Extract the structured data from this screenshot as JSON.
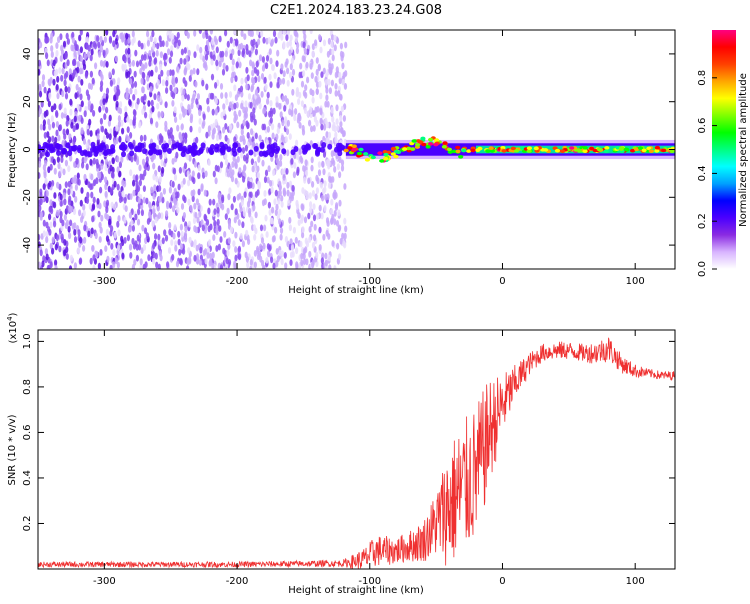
{
  "title": "C2E1.2024.183.23.24.G08",
  "chart_data": [
    {
      "type": "heatmap",
      "xlabel": "Height of straight line (km)",
      "ylabel": "Frequency (Hz)",
      "xlim": [
        -350,
        130
      ],
      "ylim": [
        -50,
        50
      ],
      "x_ticks": [
        -300,
        -200,
        -100,
        0,
        100
      ],
      "y_ticks": [
        -40,
        -20,
        0,
        20,
        40
      ],
      "colorbar": {
        "label": "Normalized spectral amplitude",
        "range": [
          0.0,
          1.0
        ],
        "ticks": [
          "0.0",
          "0.2",
          "0.4",
          "0.6",
          "0.8"
        ],
        "colors": [
          "#ffffff",
          "#d8b4ff",
          "#8a2be2",
          "#4b00ff",
          "#0000ff",
          "#00a0ff",
          "#00ffff",
          "#00ff80",
          "#00ff00",
          "#80ff00",
          "#ffff00",
          "#ffa500",
          "#ff4000",
          "#ff0000",
          "#ff0080"
        ]
      },
      "regions": {
        "noise": {
          "x_range": [
            -350,
            -118
          ],
          "y_range": [
            -50,
            50
          ],
          "amplitude": 0.2
        },
        "signal_band": {
          "x_range": [
            -118,
            130
          ],
          "center_hz": 0,
          "half_width_hz": 4,
          "amplitude_min": 0.5,
          "amplitude_max": 0.95
        }
      }
    },
    {
      "type": "line",
      "xlabel": "Height of straight line (km)",
      "ylabel": "SNR (10 * v/v)",
      "scale_label": "(x10",
      "scale_exp": "4",
      "scale_close": ")",
      "xlim": [
        -350,
        130
      ],
      "ylim": [
        0,
        1.05
      ],
      "x_ticks": [
        -300,
        -200,
        -100,
        0,
        100
      ],
      "y_ticks": [
        "0.2",
        "0.4",
        "0.6",
        "0.8",
        "1.0"
      ],
      "series": [
        {
          "color": "#ef3030",
          "x": [
            -350,
            -200,
            -120,
            -105,
            -95,
            -80,
            -70,
            -60,
            -50,
            -40,
            -30,
            -20,
            -15,
            -10,
            0,
            10,
            20,
            30,
            40,
            50,
            60,
            70,
            80,
            90,
            100,
            110,
            120,
            130
          ],
          "y": [
            0.02,
            0.02,
            0.025,
            0.04,
            0.08,
            0.08,
            0.1,
            0.12,
            0.2,
            0.28,
            0.35,
            0.42,
            0.5,
            0.6,
            0.72,
            0.82,
            0.9,
            0.95,
            0.96,
            0.96,
            0.95,
            0.95,
            0.97,
            0.9,
            0.87,
            0.86,
            0.85,
            0.85
          ],
          "noise": [
            0.012,
            0.012,
            0.015,
            0.05,
            0.07,
            0.06,
            0.07,
            0.09,
            0.15,
            0.28,
            0.3,
            0.3,
            0.28,
            0.24,
            0.14,
            0.08,
            0.05,
            0.04,
            0.04,
            0.04,
            0.04,
            0.05,
            0.06,
            0.04,
            0.03,
            0.02,
            0.02,
            0.02
          ]
        }
      ]
    }
  ]
}
